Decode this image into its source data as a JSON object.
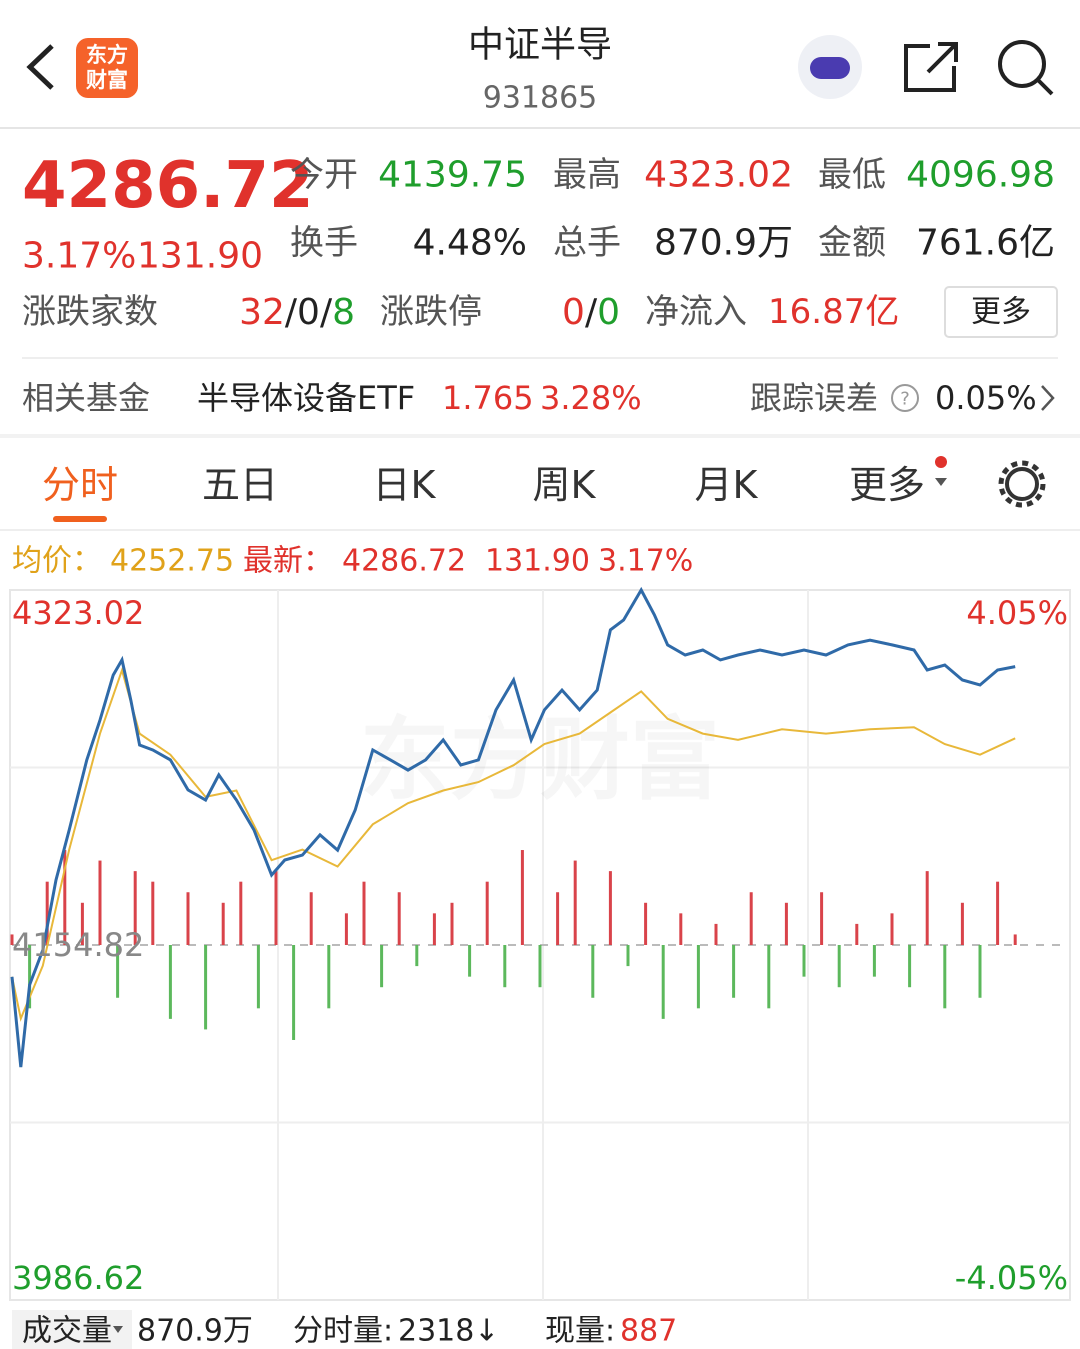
{
  "header": {
    "title": "中证半导",
    "code": "931865",
    "logo": [
      "东方",
      "财富"
    ]
  },
  "quote": {
    "price": "4286.72",
    "change_pct": "3.17%",
    "change": "131.90",
    "stats": [
      {
        "label": "今开",
        "value": "4139.75"
      },
      {
        "label": "最高",
        "value": "4323.02"
      },
      {
        "label": "最低",
        "value": "4096.98"
      },
      {
        "label": "换手",
        "value": "4.48%"
      },
      {
        "label": "总手",
        "value": "870.9万"
      },
      {
        "label": "金额",
        "value": "761.6亿"
      }
    ],
    "breadth": {
      "label": "涨跌家数",
      "parts": [
        "32",
        "0",
        "8"
      ],
      "sep": "/"
    },
    "limit": {
      "label": "涨跌停",
      "parts": [
        "0",
        "0"
      ]
    },
    "inflow": {
      "label": "净流入",
      "value": "16.87亿"
    },
    "more": "更多"
  },
  "fund": {
    "label": "相关基金",
    "name": "半导体设备ETF",
    "price": "1.765",
    "pct": "3.28%",
    "err_label": "跟踪误差",
    "err": "0.05%"
  },
  "tabs": [
    "分时",
    "五日",
    "日K",
    "周K",
    "月K",
    "更多"
  ],
  "info": {
    "avg_label": "均价：",
    "avg": "4252.75",
    "latest_label": "最新：",
    "latest": "4286.72",
    "change": "131.90",
    "pct": "3.17%"
  },
  "watermark": "东方财富",
  "chart_data": {
    "type": "line",
    "xlim": [
      0,
      240
    ],
    "ylim": [
      3986.62,
      4323.02
    ],
    "yticks": [
      4323.02,
      4154.82,
      3986.62
    ],
    "y2lim": [
      -4.05,
      4.05
    ],
    "y2ticks": [
      {
        "value": 4.05,
        "label": "4.05%"
      },
      {
        "value": -4.05,
        "label": "-4.05%"
      }
    ],
    "series": [
      {
        "color": "#2f6aa8",
        "x": [
          0,
          2,
          4,
          7,
          10,
          13,
          17,
          20,
          23,
          25,
          27,
          29,
          32,
          36,
          40,
          44,
          47,
          51,
          55,
          59,
          62,
          66,
          70,
          74,
          78,
          82,
          86,
          90,
          94,
          98,
          102,
          106,
          110,
          114,
          118,
          121,
          125,
          129,
          133,
          136,
          139,
          143,
          146,
          149,
          153,
          157,
          161,
          165,
          170,
          175,
          180,
          185,
          190,
          195,
          200,
          205,
          208,
          212,
          216,
          220,
          224,
          228
        ],
        "values": [
          4139.75,
          4096.98,
          4135.9,
          4152.4,
          4185.6,
          4209.3,
          4242.5,
          4261.4,
          4282.7,
          4289.9,
          4270.9,
          4249.6,
          4247.2,
          4242.5,
          4228.3,
          4223.5,
          4235.4,
          4223.5,
          4209.3,
          4188.0,
          4195.1,
          4197.4,
          4207.0,
          4199.8,
          4218.8,
          4247.2,
          4242.5,
          4237.7,
          4242.5,
          4252.0,
          4240.1,
          4242.5,
          4266.2,
          4280.4,
          4252.0,
          4266.2,
          4275.6,
          4266.2,
          4275.6,
          4304.1,
          4308.8,
          4323.02,
          4311.2,
          4297.0,
          4292.2,
          4294.6,
          4289.9,
          4292.2,
          4294.6,
          4292.2,
          4294.6,
          4292.2,
          4297.0,
          4299.3,
          4297.0,
          4294.6,
          4285.1,
          4287.5,
          4280.4,
          4278.0,
          4285.1,
          4286.72
        ]
      },
      {
        "color": "#e8b83a",
        "x": [
          0,
          2,
          7,
          13,
          20,
          25,
          29,
          36,
          44,
          51,
          59,
          66,
          74,
          82,
          90,
          98,
          106,
          114,
          121,
          129,
          136,
          143,
          149,
          157,
          165,
          175,
          185,
          195,
          205,
          212,
          220,
          228
        ],
        "values": [
          4139.75,
          4120,
          4145,
          4200,
          4255,
          4285,
          4255,
          4245,
          4225,
          4228,
          4195,
          4200,
          4192,
          4212,
          4222,
          4228,
          4232,
          4240,
          4250,
          4255,
          4265,
          4275,
          4262,
          4255,
          4252,
          4257,
          4255,
          4257,
          4258,
          4250,
          4245,
          4252.75
        ]
      }
    ],
    "bars": {
      "base": 4154.82,
      "up_color": "#d9434a",
      "down_color": "#5cb85c",
      "x": [
        0,
        4,
        8,
        12,
        16,
        20,
        24,
        28,
        32,
        36,
        40,
        44,
        48,
        52,
        56,
        60,
        64,
        68,
        72,
        76,
        80,
        84,
        88,
        92,
        96,
        100,
        104,
        108,
        112,
        116,
        120,
        124,
        128,
        132,
        136,
        140,
        144,
        148,
        152,
        156,
        160,
        164,
        168,
        172,
        176,
        180,
        184,
        188,
        192,
        196,
        200,
        204,
        208,
        212,
        216,
        220,
        224,
        228
      ],
      "values": [
        5,
        -30,
        30,
        45,
        20,
        40,
        -25,
        35,
        30,
        -35,
        25,
        -40,
        20,
        30,
        -30,
        35,
        -45,
        25,
        -30,
        15,
        30,
        -20,
        25,
        -10,
        15,
        20,
        -15,
        30,
        -20,
        45,
        -20,
        25,
        40,
        -25,
        35,
        -10,
        20,
        -35,
        15,
        -30,
        10,
        -25,
        25,
        -30,
        20,
        -15,
        25,
        -20,
        10,
        -15,
        15,
        -20,
        35,
        -30,
        20,
        -25,
        30,
        5
      ]
    }
  },
  "footer": {
    "vol_label": "成交量",
    "total": "870.9万",
    "minute_label": "分时量:",
    "minute": "2318",
    "arrow": "↓",
    "now_label": "现量:",
    "now": "887"
  }
}
